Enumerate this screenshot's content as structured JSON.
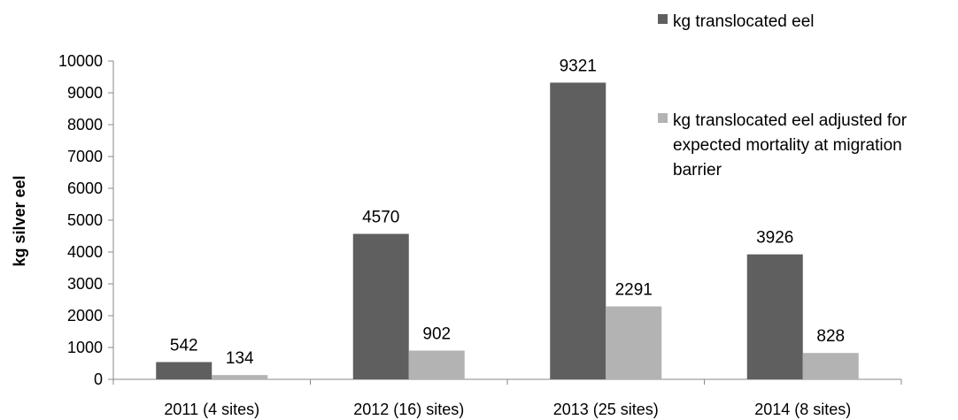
{
  "chart_data": {
    "type": "bar",
    "title": "",
    "xlabel": "",
    "ylabel": "kg silver eel",
    "ylim": [
      0,
      10000
    ],
    "yticks": [
      0,
      1000,
      2000,
      3000,
      4000,
      5000,
      6000,
      7000,
      8000,
      9000,
      10000
    ],
    "grid": false,
    "legend_position": "right",
    "categories": [
      "2011 (4 sites)",
      "2012 (16) sites)",
      "2013 (25 sites)",
      "2014 (8 sites)"
    ],
    "series": [
      {
        "name": "kg translocated eel",
        "color": "#5f5f5f",
        "values": [
          542,
          4570,
          9321,
          3926
        ],
        "labels": [
          "542",
          "4570",
          "9321",
          "3926"
        ]
      },
      {
        "name": "kg translocated eel adjusted for expected mortality at migration barrier",
        "name_lines": [
          "kg translocated eel adjusted for",
          "expected mortality at migration",
          "barrier"
        ],
        "color": "#b3b3b3",
        "values": [
          134,
          902,
          2291,
          828
        ],
        "labels": [
          "134",
          "902",
          "2291",
          "828"
        ]
      }
    ]
  }
}
